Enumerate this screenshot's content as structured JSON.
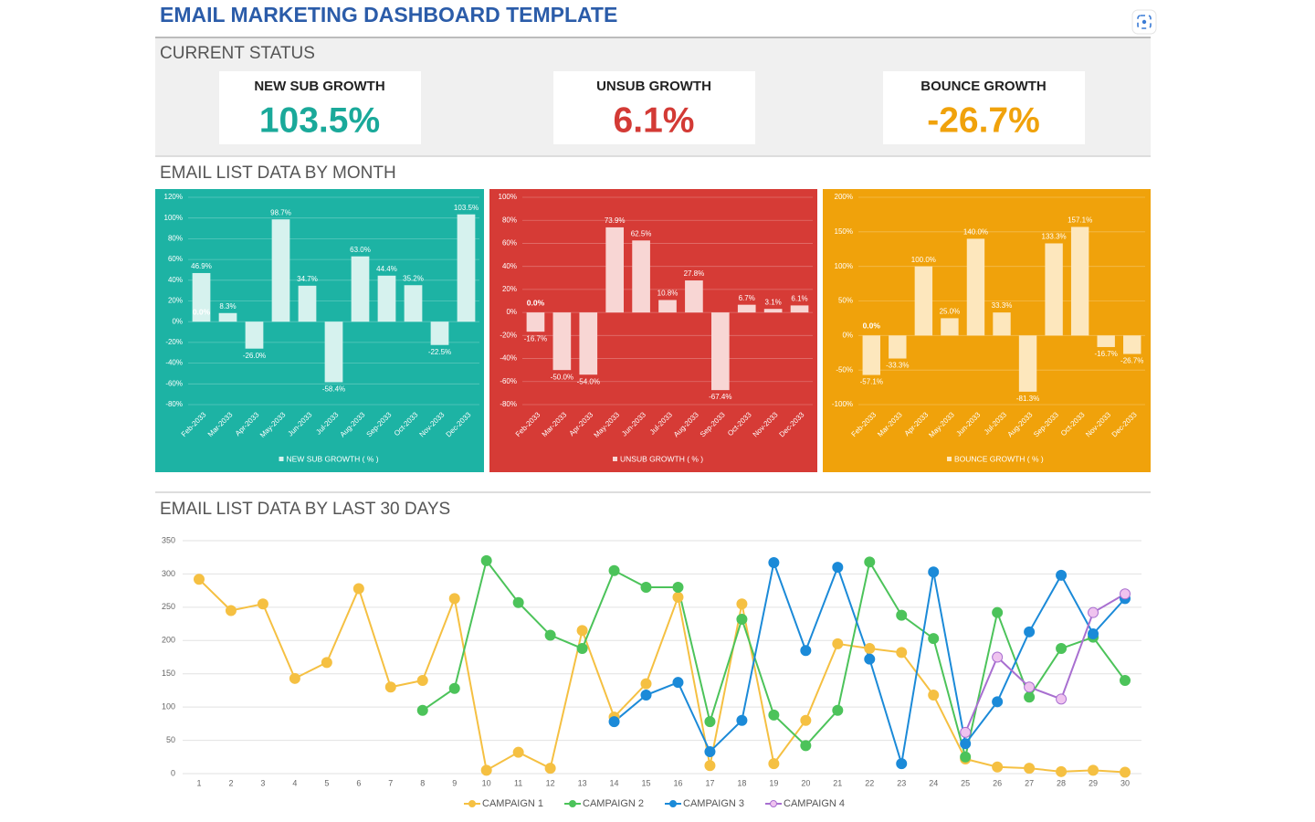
{
  "header": {
    "title": "EMAIL MARKETING DASHBOARD TEMPLATE"
  },
  "current_status": {
    "title": "CURRENT STATUS",
    "kpis": [
      {
        "label": "NEW SUB GROWTH",
        "value": "103.5%"
      },
      {
        "label": "UNSUB GROWTH",
        "value": "6.1%"
      },
      {
        "label": "BOUNCE GROWTH",
        "value": "-26.7%"
      }
    ]
  },
  "monthly_section": "EMAIL LIST DATA BY MONTH",
  "daily_section": "EMAIL LIST DATA BY LAST 30 DAYS",
  "chart_data": [
    {
      "type": "bar",
      "background": "#1db3a4",
      "grid": true,
      "categories": [
        "Feb-2033",
        "Mar-2033",
        "Apr-2033",
        "May-2033",
        "Jun-2033",
        "Jul-2033",
        "Aug-2033",
        "Sep-2033",
        "Oct-2033",
        "Nov-2033",
        "Dec-2033"
      ],
      "series": [
        {
          "name": "NEW SUB GROWTH ( % )",
          "color": "#d6f2ee",
          "values": [
            46.9,
            8.3,
            -26.0,
            98.7,
            34.7,
            -58.4,
            63.0,
            44.4,
            35.2,
            -22.5,
            103.5
          ],
          "value_labels": [
            "46.9%",
            "8.3%",
            "-26.0%",
            "98.7%",
            "34.7%",
            "-58.4%",
            "63.0%",
            "44.4%",
            "35.2%",
            "-22.5%",
            "103.5%"
          ]
        }
      ],
      "annotations": [
        "0.0%"
      ],
      "ylim": [
        -80,
        120
      ],
      "yticks": [
        {
          "value": -80,
          "label": "-80%"
        },
        {
          "value": -60,
          "label": "-60%"
        },
        {
          "value": -40,
          "label": "-40%"
        },
        {
          "value": -20,
          "label": "-20%"
        },
        {
          "value": 0,
          "label": "0%"
        },
        {
          "value": 20,
          "label": "20%"
        },
        {
          "value": 40,
          "label": "40%"
        },
        {
          "value": 60,
          "label": "60%"
        },
        {
          "value": 80,
          "label": "80%"
        },
        {
          "value": 100,
          "label": "100%"
        },
        {
          "value": 120,
          "label": "120%"
        }
      ]
    },
    {
      "type": "bar",
      "background": "#d63b36",
      "grid": true,
      "categories": [
        "Feb-2033",
        "Mar-2033",
        "Apr-2033",
        "May-2033",
        "Jun-2033",
        "Jul-2033",
        "Aug-2033",
        "Sep-2033",
        "Oct-2033",
        "Nov-2033",
        "Dec-2033"
      ],
      "series": [
        {
          "name": "UNSUB GROWTH ( % )",
          "color": "#f8d6d4",
          "values": [
            -16.7,
            -50.0,
            -54.0,
            73.9,
            62.5,
            10.8,
            27.8,
            -67.4,
            6.7,
            3.1,
            6.1
          ],
          "value_labels": [
            "-16.7%",
            "-50.0%",
            "-54.0%",
            "73.9%",
            "62.5%",
            "10.8%",
            "27.8%",
            "-67.4%",
            "6.7%",
            "3.1%",
            "6.1%"
          ]
        }
      ],
      "annotations": [
        "0.0%"
      ],
      "ylim": [
        -80,
        100
      ],
      "yticks": [
        {
          "value": -80,
          "label": "-80%"
        },
        {
          "value": -60,
          "label": "-60%"
        },
        {
          "value": -40,
          "label": "-40%"
        },
        {
          "value": -20,
          "label": "-20%"
        },
        {
          "value": 0,
          "label": "0%"
        },
        {
          "value": 20,
          "label": "20%"
        },
        {
          "value": 40,
          "label": "40%"
        },
        {
          "value": 60,
          "label": "60%"
        },
        {
          "value": 80,
          "label": "80%"
        },
        {
          "value": 100,
          "label": "100%"
        }
      ]
    },
    {
      "type": "bar",
      "background": "#f0a20b",
      "grid": true,
      "categories": [
        "Feb-2033",
        "Mar-2033",
        "Apr-2033",
        "May-2033",
        "Jun-2033",
        "Jul-2033",
        "Aug-2033",
        "Sep-2033",
        "Oct-2033",
        "Nov-2033",
        "Dec-2033"
      ],
      "series": [
        {
          "name": "BOUNCE GROWTH ( % )",
          "color": "#fde7bd",
          "values": [
            -57.1,
            -33.3,
            100.0,
            25.0,
            140.0,
            33.3,
            -81.3,
            133.3,
            157.1,
            -16.7,
            -26.7
          ],
          "value_labels": [
            "-57.1%",
            "-33.3%",
            "100.0%",
            "25.0%",
            "140.0%",
            "33.3%",
            "-81.3%",
            "133.3%",
            "157.1%",
            "-16.7%",
            "-26.7%"
          ]
        }
      ],
      "annotations": [
        "0.0%"
      ],
      "ylim": [
        -100,
        200
      ],
      "yticks": [
        {
          "value": -100,
          "label": "-100%"
        },
        {
          "value": -50,
          "label": "-50%"
        },
        {
          "value": 0,
          "label": "0%"
        },
        {
          "value": 50,
          "label": "50%"
        },
        {
          "value": 100,
          "label": "100%"
        },
        {
          "value": 150,
          "label": "150%"
        },
        {
          "value": 200,
          "label": "200%"
        }
      ]
    },
    {
      "type": "line",
      "grid": true,
      "x": [
        1,
        2,
        3,
        4,
        5,
        6,
        7,
        8,
        9,
        10,
        11,
        12,
        13,
        14,
        15,
        16,
        17,
        18,
        19,
        20,
        21,
        22,
        23,
        24,
        25,
        26,
        27,
        28,
        29,
        30
      ],
      "series": [
        {
          "name": "CAMPAIGN 1",
          "color": "#f5c042",
          "marker_color": "#f5c042",
          "values": [
            292,
            245,
            255,
            143,
            167,
            278,
            130,
            140,
            263,
            5,
            32,
            8,
            215,
            85,
            135,
            265,
            12,
            255,
            15,
            80,
            195,
            188,
            182,
            118,
            22,
            10,
            8,
            3,
            5,
            2
          ]
        },
        {
          "name": "CAMPAIGN 2",
          "color": "#4cc35a",
          "marker_color": "#4cc35a",
          "values": [
            null,
            null,
            null,
            null,
            null,
            null,
            null,
            95,
            128,
            320,
            257,
            208,
            188,
            305,
            280,
            280,
            78,
            232,
            88,
            42,
            95,
            318,
            238,
            203,
            25,
            242,
            115,
            188,
            205,
            140
          ]
        },
        {
          "name": "CAMPAIGN 3",
          "color": "#1b8ad8",
          "marker_color": "#1b8ad8",
          "values": [
            null,
            null,
            null,
            null,
            null,
            null,
            null,
            null,
            null,
            null,
            null,
            null,
            null,
            78,
            118,
            137,
            33,
            80,
            317,
            185,
            310,
            172,
            15,
            303,
            45,
            108,
            213,
            298,
            210,
            263
          ]
        },
        {
          "name": "CAMPAIGN 4",
          "color": "#a86fd0",
          "marker_color": "#efc3ef",
          "values": [
            null,
            null,
            null,
            null,
            null,
            null,
            null,
            null,
            null,
            null,
            null,
            null,
            null,
            null,
            null,
            null,
            null,
            null,
            null,
            null,
            null,
            null,
            null,
            null,
            62,
            175,
            130,
            112,
            242,
            270
          ]
        }
      ],
      "ylim": [
        0,
        350
      ],
      "yticks": [
        0,
        50,
        100,
        150,
        200,
        250,
        300,
        350
      ]
    }
  ]
}
